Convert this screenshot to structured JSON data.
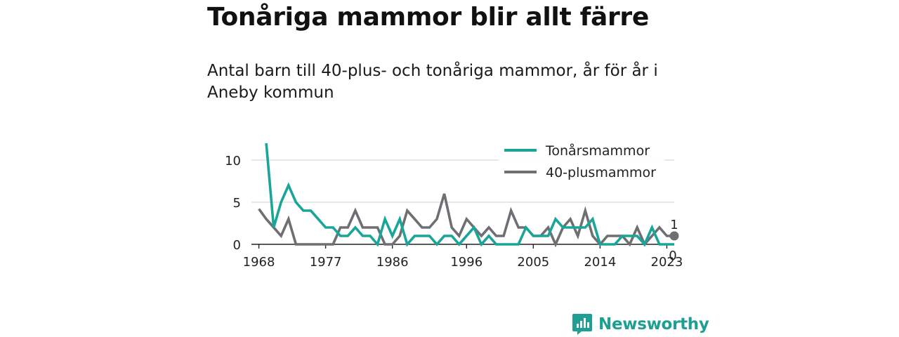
{
  "title": "Tonåriga mammor blir allt färre",
  "subtitle": "Antal barn till 40-plus- och tonåriga mammor, år för år i Aneby kommun",
  "brand": "Newsworthy",
  "colors": {
    "teen": "#1aa59a",
    "forty": "#6f6e72",
    "grid": "#d9d9d9",
    "axis": "#222222",
    "brand": "#1f9e93"
  },
  "chart_data": {
    "type": "line",
    "x_ticks": [
      1968,
      1977,
      1986,
      1996,
      2005,
      2014,
      2023
    ],
    "y_ticks": [
      0,
      5,
      10
    ],
    "xlim": [
      1967,
      2024
    ],
    "ylim": [
      0,
      12.5
    ],
    "legend": "top-right",
    "series": [
      {
        "name": "Tonårsmammor",
        "color": "#1aa59a",
        "end_label": "0",
        "points": [
          [
            1969,
            12
          ],
          [
            1970,
            2
          ],
          [
            1971,
            5
          ],
          [
            1972,
            7
          ],
          [
            1973,
            5
          ],
          [
            1974,
            4
          ],
          [
            1975,
            4
          ],
          [
            1976,
            3
          ],
          [
            1977,
            2
          ],
          [
            1978,
            2
          ],
          [
            1979,
            1
          ],
          [
            1980,
            1
          ],
          [
            1981,
            2
          ],
          [
            1982,
            1
          ],
          [
            1983,
            1
          ],
          [
            1984,
            0
          ],
          [
            1985,
            3
          ],
          [
            1986,
            1
          ],
          [
            1987,
            3
          ],
          [
            1988,
            0
          ],
          [
            1989,
            1
          ],
          [
            1990,
            1
          ],
          [
            1991,
            1
          ],
          [
            1992,
            0
          ],
          [
            1993,
            1
          ],
          [
            1994,
            1
          ],
          [
            1995,
            0
          ],
          [
            1996,
            1
          ],
          [
            1997,
            2
          ],
          [
            1998,
            0
          ],
          [
            1999,
            1
          ],
          [
            2000,
            0
          ],
          [
            2001,
            0
          ],
          [
            2002,
            0
          ],
          [
            2003,
            0
          ],
          [
            2004,
            2
          ],
          [
            2005,
            1
          ],
          [
            2006,
            1
          ],
          [
            2007,
            1
          ],
          [
            2008,
            3
          ],
          [
            2009,
            2
          ],
          [
            2010,
            2
          ],
          [
            2011,
            2
          ],
          [
            2012,
            2
          ],
          [
            2013,
            3
          ],
          [
            2014,
            0
          ],
          [
            2015,
            0
          ],
          [
            2016,
            0
          ],
          [
            2017,
            1
          ],
          [
            2018,
            1
          ],
          [
            2019,
            1
          ],
          [
            2020,
            0
          ],
          [
            2021,
            2
          ],
          [
            2022,
            0
          ],
          [
            2023,
            0
          ],
          [
            2024,
            0
          ]
        ]
      },
      {
        "name": "40-plusmammor",
        "color": "#6f6e72",
        "end_label": "1",
        "points": [
          [
            1968,
            4.2
          ],
          [
            1969,
            3
          ],
          [
            1970,
            2
          ],
          [
            1971,
            1
          ],
          [
            1972,
            3
          ],
          [
            1973,
            0
          ],
          [
            1974,
            0
          ],
          [
            1975,
            0
          ],
          [
            1976,
            0
          ],
          [
            1977,
            0
          ],
          [
            1978,
            0
          ],
          [
            1979,
            2
          ],
          [
            1980,
            2
          ],
          [
            1981,
            4
          ],
          [
            1982,
            2
          ],
          [
            1983,
            2
          ],
          [
            1984,
            2
          ],
          [
            1985,
            0
          ],
          [
            1986,
            0
          ],
          [
            1987,
            1
          ],
          [
            1988,
            4
          ],
          [
            1989,
            3
          ],
          [
            1990,
            2
          ],
          [
            1991,
            2
          ],
          [
            1992,
            3
          ],
          [
            1993,
            6
          ],
          [
            1994,
            2
          ],
          [
            1995,
            1
          ],
          [
            1996,
            3
          ],
          [
            1997,
            2
          ],
          [
            1998,
            1
          ],
          [
            1999,
            2
          ],
          [
            2000,
            1
          ],
          [
            2001,
            1
          ],
          [
            2002,
            4
          ],
          [
            2003,
            2
          ],
          [
            2004,
            2
          ],
          [
            2005,
            1
          ],
          [
            2006,
            1
          ],
          [
            2007,
            2
          ],
          [
            2008,
            0
          ],
          [
            2009,
            2
          ],
          [
            2010,
            3
          ],
          [
            2011,
            1
          ],
          [
            2012,
            4
          ],
          [
            2013,
            1
          ],
          [
            2014,
            0
          ],
          [
            2015,
            1
          ],
          [
            2016,
            1
          ],
          [
            2017,
            1
          ],
          [
            2018,
            0
          ],
          [
            2019,
            2
          ],
          [
            2020,
            0
          ],
          [
            2021,
            1
          ],
          [
            2022,
            2
          ],
          [
            2023,
            1
          ],
          [
            2024,
            1
          ]
        ]
      }
    ]
  }
}
